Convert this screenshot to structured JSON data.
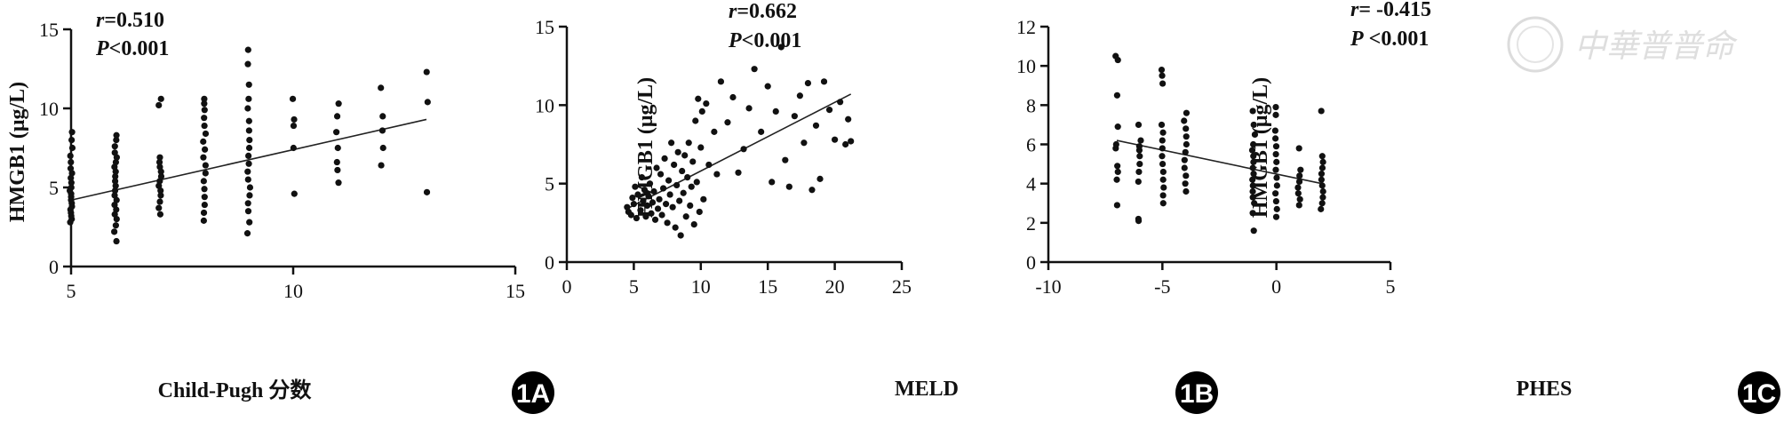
{
  "watermark": {
    "text": "中華普普命"
  },
  "chart_data": [
    {
      "type": "scatter",
      "panel_label": "1A",
      "xlabel": "Child-Pugh 分数",
      "ylabel": "HMGB1 (μg/L)",
      "xlim": [
        5,
        15
      ],
      "ylim": [
        0,
        15
      ],
      "xticks": [
        "5",
        "10",
        "15"
      ],
      "yticks": [
        "0",
        "5",
        "10",
        "15"
      ],
      "annotations": {
        "r_symbol": "r",
        "r_value": "=0.510",
        "p_symbol": "P",
        "p_value": "<0.001"
      },
      "fit_line": {
        "x": [
          5,
          13
        ],
        "y": [
          4.2,
          9.3
        ]
      },
      "columns": [
        {
          "x": 5,
          "y": [
            2.8,
            3.0,
            3.2,
            3.4,
            3.6,
            3.8,
            4.0,
            4.2,
            4.4,
            4.6,
            4.8,
            5.0,
            5.3,
            5.6,
            5.9,
            6.2,
            6.6,
            7.0,
            7.5,
            8.0,
            8.5
          ]
        },
        {
          "x": 6,
          "y": [
            1.6,
            2.2,
            2.6,
            3.0,
            3.3,
            3.6,
            3.9,
            4.2,
            4.5,
            4.8,
            5.1,
            5.4,
            5.7,
            6.0,
            6.3,
            6.6,
            6.9,
            7.2,
            7.6,
            8.0,
            8.3
          ]
        },
        {
          "x": 7,
          "y": [
            3.3,
            3.7,
            4.1,
            4.5,
            4.8,
            5.1,
            5.4,
            5.7,
            6.0,
            6.3,
            6.6,
            6.9,
            10.2,
            10.6
          ]
        },
        {
          "x": 8,
          "y": [
            2.9,
            3.4,
            3.9,
            4.4,
            4.9,
            5.4,
            5.9,
            6.4,
            6.9,
            7.4,
            7.9,
            8.4,
            8.9,
            9.4,
            9.9,
            10.3,
            10.6
          ]
        },
        {
          "x": 9,
          "y": [
            2.1,
            2.8,
            3.5,
            4.0,
            4.5,
            5.0,
            5.5,
            6.0,
            6.5,
            7.0,
            7.5,
            8.0,
            8.6,
            9.2,
            10.0,
            10.6,
            11.5,
            12.8,
            13.7
          ]
        },
        {
          "x": 10,
          "y": [
            4.6,
            7.5,
            8.9,
            9.3,
            10.6
          ]
        },
        {
          "x": 11,
          "y": [
            5.3,
            6.1,
            6.6,
            7.5,
            8.5,
            9.5,
            10.3
          ]
        },
        {
          "x": 12,
          "y": [
            6.4,
            7.5,
            8.6,
            9.5,
            11.3
          ]
        },
        {
          "x": 13,
          "y": [
            4.7,
            10.4,
            12.3
          ]
        }
      ]
    },
    {
      "type": "scatter",
      "panel_label": "1B",
      "xlabel": "MELD",
      "ylabel": "HMGB1 (μg/L)",
      "xlim": [
        0,
        25
      ],
      "ylim": [
        0,
        15
      ],
      "xticks": [
        "0",
        "5",
        "10",
        "15",
        "20",
        "25"
      ],
      "yticks": [
        "0",
        "5",
        "10",
        "15"
      ],
      "annotations": {
        "r_symbol": "r",
        "r_value": "=0.662",
        "p_symbol": "P",
        "p_value": "<0.001"
      },
      "fit_line": {
        "x": [
          4.5,
          21.2
        ],
        "y": [
          3.4,
          10.7
        ]
      },
      "points": [
        [
          4.5,
          3.5
        ],
        [
          4.6,
          3.2
        ],
        [
          4.8,
          3.0
        ],
        [
          4.9,
          4.1
        ],
        [
          5.0,
          3.7
        ],
        [
          5.1,
          4.8
        ],
        [
          5.2,
          2.8
        ],
        [
          5.3,
          4.3
        ],
        [
          5.5,
          3.3
        ],
        [
          5.6,
          5.4
        ],
        [
          5.7,
          3.9
        ],
        [
          5.8,
          4.6
        ],
        [
          5.9,
          2.9
        ],
        [
          6.0,
          3.6
        ],
        [
          6.1,
          4.2
        ],
        [
          6.2,
          5.0
        ],
        [
          6.3,
          3.1
        ],
        [
          6.4,
          3.8
        ],
        [
          6.5,
          4.5
        ],
        [
          6.6,
          2.7
        ],
        [
          6.7,
          6.0
        ],
        [
          6.8,
          3.4
        ],
        [
          6.9,
          4.0
        ],
        [
          7.0,
          5.6
        ],
        [
          7.1,
          3.0
        ],
        [
          7.2,
          4.7
        ],
        [
          7.3,
          6.6
        ],
        [
          7.4,
          3.7
        ],
        [
          7.5,
          2.5
        ],
        [
          7.6,
          5.2
        ],
        [
          7.7,
          4.3
        ],
        [
          7.8,
          7.6
        ],
        [
          7.9,
          3.5
        ],
        [
          8.0,
          6.2
        ],
        [
          8.1,
          2.2
        ],
        [
          8.2,
          4.9
        ],
        [
          8.3,
          7.0
        ],
        [
          8.4,
          3.9
        ],
        [
          8.5,
          1.7
        ],
        [
          8.6,
          5.8
        ],
        [
          8.7,
          4.4
        ],
        [
          8.8,
          6.8
        ],
        [
          8.9,
          2.9
        ],
        [
          9.0,
          5.4
        ],
        [
          9.1,
          7.6
        ],
        [
          9.2,
          3.6
        ],
        [
          9.3,
          4.8
        ],
        [
          9.4,
          6.4
        ],
        [
          9.5,
          2.4
        ],
        [
          9.6,
          9.0
        ],
        [
          9.7,
          5.1
        ],
        [
          9.8,
          10.4
        ],
        [
          9.9,
          3.2
        ],
        [
          10.0,
          7.3
        ],
        [
          10.1,
          9.6
        ],
        [
          10.2,
          4.0
        ],
        [
          10.4,
          10.1
        ],
        [
          10.6,
          6.2
        ],
        [
          11.0,
          8.3
        ],
        [
          11.2,
          5.6
        ],
        [
          11.5,
          11.5
        ],
        [
          12.0,
          8.9
        ],
        [
          12.4,
          10.5
        ],
        [
          12.8,
          5.7
        ],
        [
          13.2,
          7.2
        ],
        [
          13.6,
          9.8
        ],
        [
          14.0,
          12.3
        ],
        [
          14.5,
          8.3
        ],
        [
          15.0,
          11.2
        ],
        [
          15.3,
          5.1
        ],
        [
          15.6,
          9.6
        ],
        [
          16.0,
          13.7
        ],
        [
          16.3,
          6.5
        ],
        [
          16.6,
          4.8
        ],
        [
          17.0,
          9.3
        ],
        [
          17.4,
          10.6
        ],
        [
          17.7,
          7.6
        ],
        [
          18.0,
          11.4
        ],
        [
          18.3,
          4.6
        ],
        [
          18.6,
          8.7
        ],
        [
          18.9,
          5.3
        ],
        [
          19.2,
          11.5
        ],
        [
          19.6,
          9.7
        ],
        [
          20.0,
          7.8
        ],
        [
          20.4,
          10.2
        ],
        [
          20.8,
          7.5
        ],
        [
          21.0,
          9.1
        ],
        [
          21.2,
          7.7
        ]
      ]
    },
    {
      "type": "scatter",
      "panel_label": "1C",
      "xlabel": "PHES",
      "ylabel": "HMGB1 (μg/L)",
      "xlim": [
        -10,
        5
      ],
      "ylim": [
        0,
        12
      ],
      "xticks": [
        "-10",
        "-5",
        "0",
        "5"
      ],
      "yticks": [
        "0",
        "2",
        "4",
        "6",
        "8",
        "10",
        "12"
      ],
      "annotations": {
        "r_symbol": "r",
        "r_value": "= -0.415",
        "p_symbol": "P",
        "p_value": " <0.001"
      },
      "fit_line": {
        "x": [
          -7,
          2
        ],
        "y": [
          6.2,
          4.0
        ]
      },
      "columns": [
        {
          "x": -7,
          "y": [
            2.9,
            4.2,
            4.6,
            4.9,
            5.8,
            6.0,
            6.9,
            8.5,
            10.3,
            10.5
          ]
        },
        {
          "x": -6,
          "y": [
            2.1,
            2.2,
            4.1,
            4.6,
            5.0,
            5.4,
            5.7,
            5.9,
            6.2,
            7.0
          ]
        },
        {
          "x": -5,
          "y": [
            3.0,
            3.4,
            3.8,
            4.2,
            4.6,
            5.0,
            5.4,
            5.8,
            6.2,
            6.6,
            7.0,
            9.1,
            9.5,
            9.8
          ]
        },
        {
          "x": -4,
          "y": [
            3.6,
            4.0,
            4.4,
            4.8,
            5.2,
            5.6,
            6.0,
            6.4,
            6.8,
            7.2,
            7.6
          ]
        },
        {
          "x": -1,
          "y": [
            1.6,
            2.5,
            3.0,
            3.3,
            3.6,
            3.9,
            4.2,
            4.5,
            4.8,
            5.1,
            5.4,
            5.7,
            6.0,
            6.5,
            7.0,
            7.7
          ]
        },
        {
          "x": 0,
          "y": [
            2.3,
            2.7,
            3.1,
            3.5,
            3.9,
            4.3,
            4.7,
            5.1,
            5.5,
            5.9,
            6.3,
            6.7,
            7.5,
            7.9
          ]
        },
        {
          "x": 1,
          "y": [
            2.9,
            3.2,
            3.5,
            3.8,
            4.1,
            4.4,
            4.7,
            5.8
          ]
        },
        {
          "x": 2,
          "y": [
            2.7,
            3.0,
            3.3,
            3.6,
            3.9,
            4.2,
            4.5,
            4.8,
            5.1,
            5.4,
            7.7
          ]
        }
      ]
    }
  ]
}
